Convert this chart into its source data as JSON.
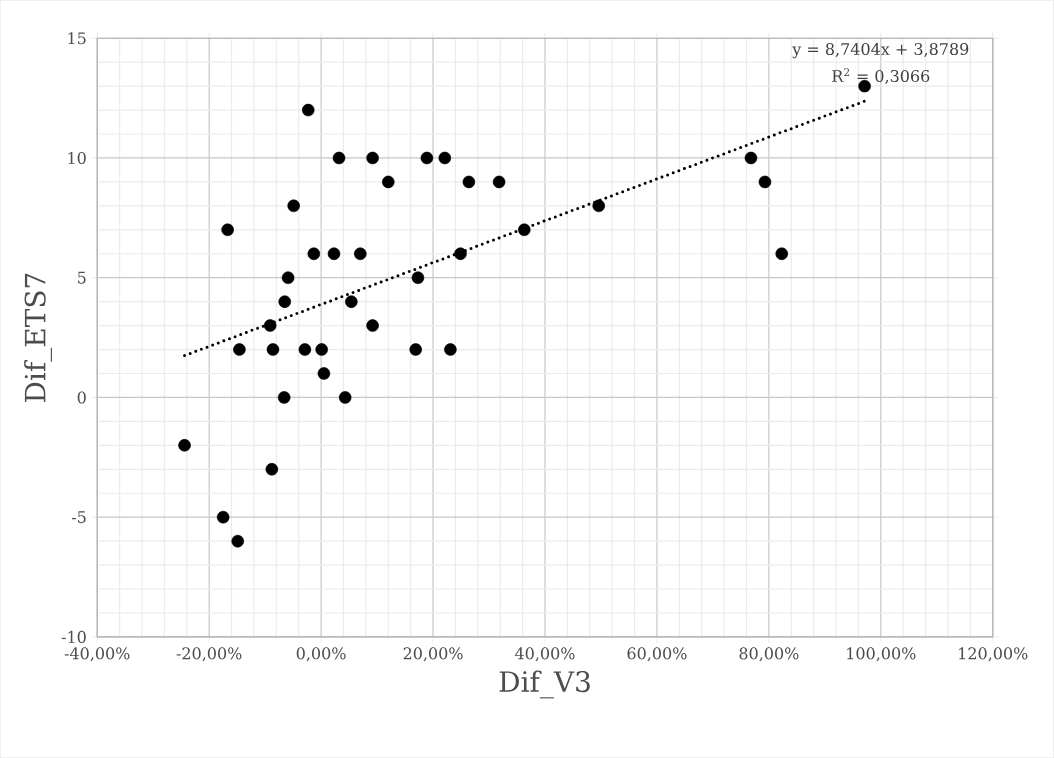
{
  "chart_data": {
    "type": "scatter",
    "xlabel": "Dif_V3",
    "ylabel": "Dif_ETS7",
    "xlim": [
      -40,
      120
    ],
    "xticks": [
      {
        "value": -40,
        "label": "-40,00%"
      },
      {
        "value": -20,
        "label": "-20,00%"
      },
      {
        "value": 0,
        "label": "0,00%"
      },
      {
        "value": 20,
        "label": "20,00%"
      },
      {
        "value": 40,
        "label": "40,00%"
      },
      {
        "value": 60,
        "label": "60,00%"
      },
      {
        "value": 80,
        "label": "80,00%"
      },
      {
        "value": 100,
        "label": "100,00%"
      },
      {
        "value": 120,
        "label": "120,00%"
      }
    ],
    "ylim": [
      -10,
      15
    ],
    "yticks": [
      -10,
      -5,
      0,
      5,
      10,
      15
    ],
    "grid": true,
    "annotations": [
      "y = 8,7404x + 3,8789",
      "R$^{2}$ = 0,3066"
    ],
    "series": [
      {
        "color": "#000000",
        "marker": "circle",
        "x": [
          -2.3,
          3.2,
          9.2,
          18.9,
          22.1,
          12.0,
          -4.9,
          -16.7,
          -1.3,
          2.3,
          7.0,
          -5.9,
          17.3,
          -6.5,
          5.4,
          -9.1,
          9.2,
          -14.6,
          -8.6,
          -2.9,
          0.1,
          16.9,
          0.5,
          -6.6,
          4.3,
          -24.4,
          -8.8,
          -17.5,
          -14.9,
          26.4,
          31.8,
          49.6,
          36.3,
          24.9,
          23.1,
          76.8,
          79.3,
          82.3,
          97.1
        ],
        "values": [
          12,
          10,
          10,
          10,
          10,
          9,
          8,
          7,
          6,
          6,
          6,
          5,
          5,
          4,
          4,
          3,
          3,
          2,
          2,
          2,
          2,
          2,
          1,
          0,
          0,
          -2,
          -3,
          -5,
          -6,
          9,
          9,
          8,
          7,
          6,
          2,
          10,
          9,
          6,
          13
        ]
      },
      {
        "type": "line",
        "color": "#000000",
        "line_style": "dotted",
        "marker": "none",
        "x": [
          -24.4,
          97.1
        ],
        "values": [
          1.75,
          12.37
        ]
      }
    ]
  }
}
